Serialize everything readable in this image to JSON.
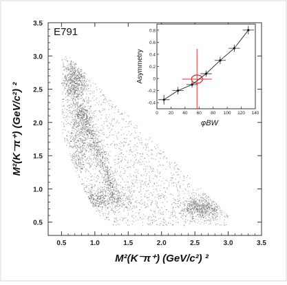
{
  "chart_data": [
    {
      "type": "scatter",
      "title": "E791",
      "xlabel": "M²(K⁻π⁺)   (GeV/c²) ²",
      "ylabel": "M²(K⁻π⁺)   (GeV/c²) ²",
      "xlim": [
        0.3,
        3.5
      ],
      "ylim": [
        0.3,
        3.5
      ],
      "xticks": [
        "0.5",
        "1.0",
        "1.5",
        "2.0",
        "2.5",
        "3.0",
        "3.5"
      ],
      "yticks": [
        "0.5",
        "1.0",
        "1.5",
        "2.0",
        "2.5",
        "3.0",
        "3.5"
      ],
      "description_points": "Dalitz plot of K-pi+ vs K-pi+ invariant mass squared; dense band along lower-left diagonal edge with clusters near (0.7,2.6), (1.2,0.8), (2.6,0.7).",
      "grid": false
    },
    {
      "type": "scatter",
      "title": "",
      "xlabel": "φBW",
      "ylabel": "Asymmetry",
      "xlim": [
        0,
        140
      ],
      "ylim": [
        -0.5,
        0.9
      ],
      "xticks": [
        "0",
        "20",
        "40",
        "60",
        "80",
        "100",
        "120",
        "140"
      ],
      "yticks": [
        "-0.4",
        "-0.2",
        "0",
        "0.2",
        "0.4",
        "0.6",
        "0.8"
      ],
      "series": [
        {
          "x": [
            10,
            30,
            50,
            70,
            90,
            110,
            130
          ],
          "y": [
            -0.35,
            -0.2,
            -0.1,
            0.08,
            0.3,
            0.5,
            0.8
          ],
          "yerr": [
            0.08,
            0.06,
            0.05,
            0.05,
            0.06,
            0.06,
            0.07
          ],
          "xerr": [
            8,
            8,
            8,
            8,
            8,
            8,
            8
          ]
        }
      ],
      "marker": {
        "x": 57,
        "y": -0.01,
        "xerr": 21,
        "yerr": 0.5,
        "color": "#e23333"
      },
      "grid": false
    }
  ]
}
